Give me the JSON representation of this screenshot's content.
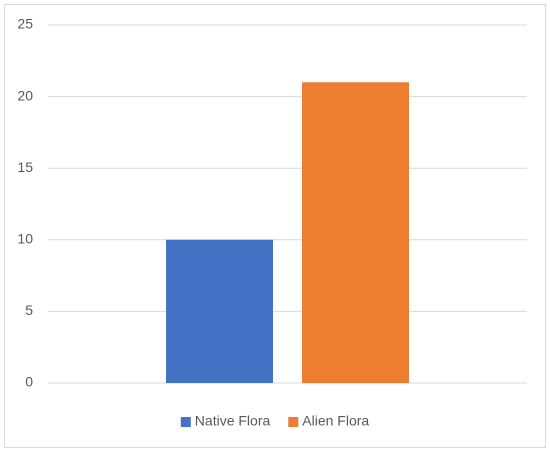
{
  "chart_data": {
    "type": "bar",
    "categories": [
      null
    ],
    "series": [
      {
        "name": "Native Flora",
        "color": "#4472c4",
        "values": [
          10
        ]
      },
      {
        "name": "Alien Flora",
        "color": "#ed7d31",
        "values": [
          21
        ]
      }
    ],
    "ylim": [
      0,
      25
    ],
    "yticks": [
      0,
      5,
      10,
      15,
      20,
      25
    ],
    "grid": true,
    "legend": "bottom"
  }
}
